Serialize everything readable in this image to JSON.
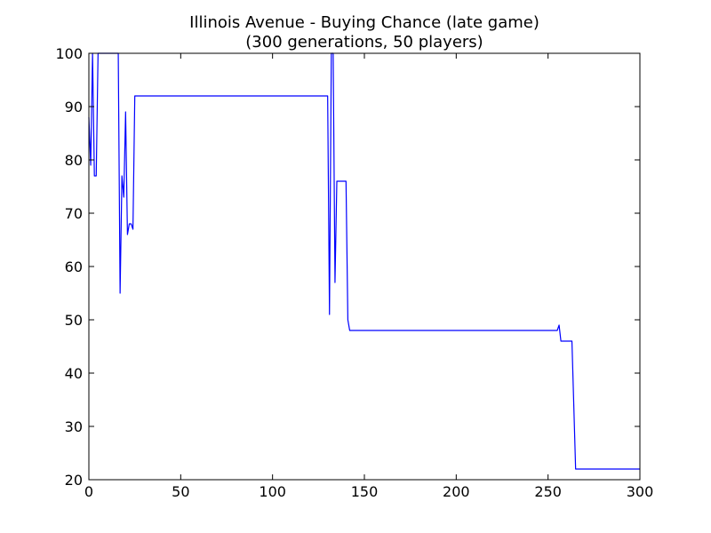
{
  "chart_data": {
    "type": "line",
    "title": "Illinois Avenue - Buying Chance (late game)",
    "subtitle": "(300 generations, 50 players)",
    "xlabel": "",
    "ylabel": "",
    "xlim": [
      0,
      300
    ],
    "ylim": [
      20,
      100
    ],
    "x_ticks": [
      0,
      50,
      100,
      150,
      200,
      250,
      300
    ],
    "y_ticks": [
      20,
      30,
      40,
      50,
      60,
      70,
      80,
      90,
      100
    ],
    "grid": false,
    "legend": "none",
    "series": [
      {
        "color": "#0000ff",
        "points": [
          [
            0,
            88
          ],
          [
            1,
            79
          ],
          [
            2,
            100
          ],
          [
            3,
            77
          ],
          [
            4,
            77
          ],
          [
            5,
            100
          ],
          [
            16,
            100
          ],
          [
            17,
            55
          ],
          [
            18,
            77
          ],
          [
            19,
            73
          ],
          [
            20,
            89
          ],
          [
            21,
            66
          ],
          [
            22,
            68
          ],
          [
            23,
            68
          ],
          [
            24,
            67
          ],
          [
            25,
            92
          ],
          [
            130,
            92
          ],
          [
            131,
            51
          ],
          [
            132,
            100
          ],
          [
            133,
            100
          ],
          [
            134,
            57
          ],
          [
            135,
            76
          ],
          [
            140,
            76
          ],
          [
            141,
            50
          ],
          [
            142,
            48
          ],
          [
            255,
            48
          ],
          [
            256,
            49
          ],
          [
            257,
            46
          ],
          [
            263,
            46
          ],
          [
            265,
            22
          ],
          [
            300,
            22
          ]
        ]
      }
    ]
  }
}
